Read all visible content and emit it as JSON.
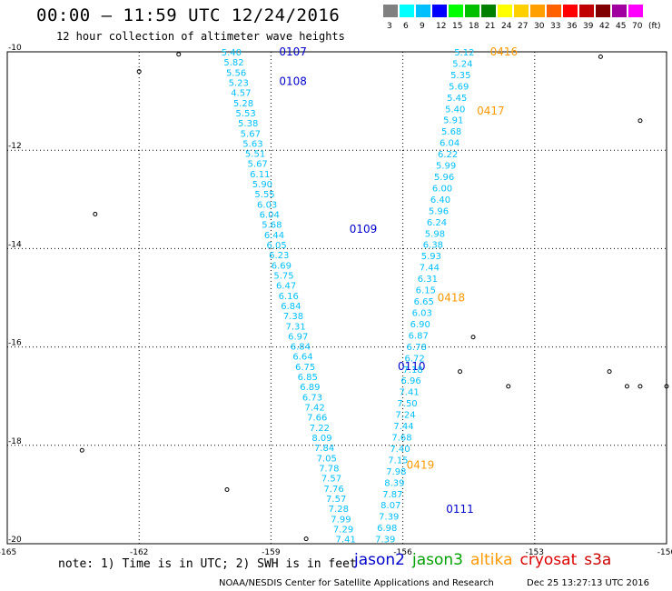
{
  "header": {
    "title": "00:00 – 11:59 UTC 12/24/2016",
    "subtitle": "12 hour collection of altimeter wave heights"
  },
  "color_scale": {
    "labels": [
      "3",
      "6",
      "9",
      "12",
      "15",
      "18",
      "21",
      "24",
      "27",
      "30",
      "33",
      "36",
      "39",
      "42",
      "45",
      "70",
      "(ft)"
    ],
    "colors": [
      "#808080",
      "#00ffff",
      "#00bfff",
      "#0000ff",
      "#00ff00",
      "#00c000",
      "#008000",
      "#ffff00",
      "#ffd000",
      "#ffa000",
      "#ff6000",
      "#ff0000",
      "#c00000",
      "#800000",
      "#a000a0",
      "#ff00ff",
      "#ffffff"
    ]
  },
  "footer": {
    "note": "note: 1) Time is in UTC; 2) SWH is in feet",
    "credit": "NOAA/NESDIS Center for Satellite Applications and Research",
    "timestamp": "Dec 25 13:27:13 UTC 2016"
  },
  "legend": [
    {
      "name": "jason2",
      "color": "#0000cc"
    },
    {
      "name": "jason3",
      "color": "#00a000"
    },
    {
      "name": "altika",
      "color": "#ff9900"
    },
    {
      "name": "cryosat",
      "color": "#dd0000"
    },
    {
      "name": "s3a",
      "color": "#cc0000"
    }
  ],
  "chart_data": {
    "type": "scatter",
    "title": "00:00 – 11:59 UTC 12/24/2016",
    "subtitle": "12 hour collection of altimeter wave heights",
    "xlim": [
      -165,
      -150
    ],
    "ylim": [
      -20,
      -10
    ],
    "x_ticks": [
      "-165",
      "-162",
      "-159",
      "-156",
      "-153",
      "-150"
    ],
    "y_ticks": [
      "-10",
      "-12",
      "-14",
      "-16",
      "-18",
      "-20"
    ],
    "x_tick_values": [
      -165,
      -162,
      -159,
      -156,
      -153,
      -150
    ],
    "y_tick_values": [
      -10,
      -12,
      -14,
      -16,
      -18,
      -20
    ],
    "units": "ft",
    "grid": true,
    "point_color": "#00bfff",
    "series": [
      {
        "name": "jason2",
        "color": "#0000cc",
        "start": [
          -159.9,
          -10.0
        ],
        "end": [
          -157.3,
          -19.9
        ],
        "values": [
          "5.40",
          "5.82",
          "5.56",
          "5.23",
          "4.57",
          "5.28",
          "5.53",
          "5.38",
          "5.67",
          "5.63",
          "5.51",
          "5.67",
          "6.11",
          "5.90",
          "5.55",
          "6.03",
          "6.04",
          "5.68",
          "6.44",
          "6.05",
          "6.23",
          "6.69",
          "5.75",
          "6.47",
          "6.16",
          "6.84",
          "7.38",
          "7.31",
          "6.97",
          "6.84",
          "6.64",
          "6.75",
          "6.85",
          "6.89",
          "6.73",
          "7.42",
          "7.66",
          "7.22",
          "8.09",
          "7.84",
          "7.05",
          "7.78",
          "7.57",
          "7.76",
          "7.57",
          "7.28",
          "7.99",
          "7.29",
          "7.41"
        ],
        "time_labels": [
          {
            "text": "0107",
            "lon": -158.5,
            "lat": -10.0
          },
          {
            "text": "0108",
            "lon": -158.5,
            "lat": -10.6
          },
          {
            "text": "0109",
            "lon": -156.9,
            "lat": -13.6
          },
          {
            "text": "0110",
            "lon": -155.8,
            "lat": -16.4
          },
          {
            "text": "0111",
            "lon": -154.7,
            "lat": -19.3
          }
        ]
      },
      {
        "name": "altika",
        "color": "#ff9900",
        "start": [
          -154.6,
          -10.0
        ],
        "end": [
          -156.4,
          -19.9
        ],
        "values": [
          "5.12",
          "5.24",
          "5.35",
          "5.69",
          "5.45",
          "5.40",
          "5.91",
          "5.68",
          "6.04",
          "6.22",
          "5.99",
          "5.96",
          "6.00",
          "6.40",
          "5.96",
          "6.24",
          "5.98",
          "6.38",
          "5.93",
          "7.44",
          "6.31",
          "6.15",
          "6.65",
          "6.03",
          "6.90",
          "6.87",
          "6.78",
          "6.72",
          "7.18",
          "6.96",
          "7.41",
          "7.50",
          "7.24",
          "7.44",
          "7.68",
          "7.40",
          "7.15",
          "7.98",
          "8.39",
          "7.87",
          "8.07",
          "7.39",
          "6.98",
          "7.39"
        ],
        "time_labels": [
          {
            "text": "0416",
            "lon": -153.7,
            "lat": -10.0
          },
          {
            "text": "0417",
            "lon": -154.0,
            "lat": -11.2
          },
          {
            "text": "0418",
            "lon": -154.9,
            "lat": -15.0
          },
          {
            "text": "0419",
            "lon": -155.6,
            "lat": -18.4
          }
        ]
      }
    ],
    "annotations": [
      "0107",
      "0108",
      "0109",
      "0110",
      "0111",
      "0416",
      "0417",
      "0418",
      "0419"
    ]
  }
}
